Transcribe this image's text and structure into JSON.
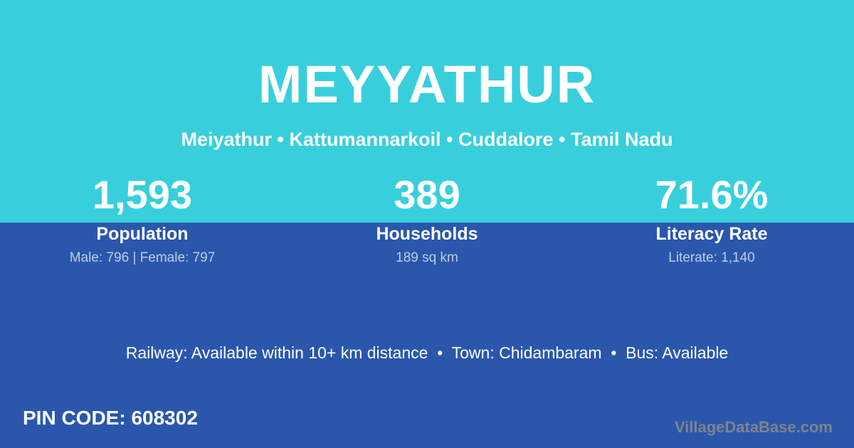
{
  "colors": {
    "top_bg": "#38cfdc",
    "bottom_bg": "#2a57ac",
    "text": "#ffffff",
    "muted": "#bfcde6",
    "watermark": "#7d848c"
  },
  "header": {
    "title": "MEYYATHUR",
    "subtitle": "Meiyathur • Kattumannarkoil • Cuddalore • Tamil Nadu"
  },
  "stats": [
    {
      "value": "1,593",
      "label": "Population",
      "detail": "Male: 796 | Female: 797"
    },
    {
      "value": "389",
      "label": "Households",
      "detail": "189 sq km"
    },
    {
      "value": "71.6%",
      "label": "Literacy Rate",
      "detail": "Literate: 1,140"
    }
  ],
  "info_line": "Railway: Available within 10+ km distance  •  Town: Chidambaram  •  Bus: Available",
  "footer": {
    "pin_code": "PIN CODE: 608302",
    "watermark": "VillageDataBase.com"
  }
}
